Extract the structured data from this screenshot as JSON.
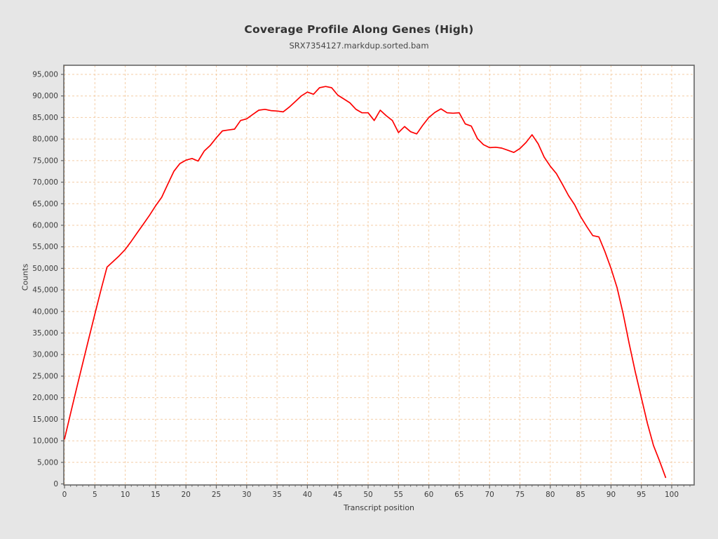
{
  "chart_data": {
    "type": "line",
    "title": "Coverage Profile Along Genes (High)",
    "subtitle": "SRX7354127.markdup.sorted.bam",
    "xlabel": "Transcript position",
    "ylabel": "Counts",
    "xlim": [
      0,
      100
    ],
    "ylim": [
      0,
      97000
    ],
    "x_ticks": [
      0,
      5,
      10,
      15,
      20,
      25,
      30,
      35,
      40,
      45,
      50,
      55,
      60,
      65,
      70,
      75,
      80,
      85,
      90,
      95,
      100
    ],
    "y_ticks": [
      0,
      5000,
      10000,
      15000,
      20000,
      25000,
      30000,
      35000,
      40000,
      45000,
      50000,
      55000,
      60000,
      65000,
      70000,
      75000,
      80000,
      85000,
      90000,
      95000
    ],
    "grid": {
      "style": "dashed",
      "color": "#f4cda6"
    },
    "legend": "none",
    "plot_background": "#ffffff",
    "page_background": "#e6e6e6",
    "frame_color": "#666666",
    "series": [
      {
        "name": "coverage",
        "color": "#fe0000",
        "x": [
          0,
          1,
          2,
          3,
          4,
          5,
          6,
          7,
          8,
          9,
          10,
          11,
          12,
          13,
          14,
          15,
          16,
          17,
          18,
          19,
          20,
          21,
          22,
          23,
          24,
          25,
          26,
          27,
          28,
          29,
          30,
          31,
          32,
          33,
          34,
          35,
          36,
          37,
          38,
          39,
          40,
          41,
          42,
          43,
          44,
          45,
          46,
          47,
          48,
          49,
          50,
          51,
          52,
          53,
          54,
          55,
          56,
          57,
          58,
          59,
          60,
          61,
          62,
          63,
          64,
          65,
          66,
          67,
          68,
          69,
          70,
          71,
          72,
          73,
          74,
          75,
          76,
          77,
          78,
          79,
          80,
          81,
          82,
          83,
          84,
          85,
          86,
          87,
          88,
          89,
          90,
          91,
          92,
          93,
          94,
          95,
          96,
          97,
          98,
          99
        ],
        "y": [
          10400,
          16400,
          22200,
          28000,
          33700,
          39400,
          45000,
          50300,
          51600,
          52900,
          54400,
          56300,
          58300,
          60300,
          62300,
          64500,
          66500,
          69500,
          72500,
          74300,
          75100,
          75500,
          74900,
          77200,
          78500,
          80300,
          81900,
          82100,
          82300,
          84300,
          84700,
          85700,
          86700,
          86900,
          86600,
          86500,
          86300,
          87400,
          88700,
          90000,
          90900,
          90400,
          91900,
          92200,
          91900,
          90200,
          89300,
          88400,
          86900,
          86100,
          86100,
          84300,
          86700,
          85400,
          84300,
          81500,
          82900,
          81700,
          81200,
          83200,
          85000,
          86200,
          87000,
          86100,
          86000,
          86100,
          83500,
          83000,
          80100,
          78700,
          78000,
          78100,
          77900,
          77400,
          76900,
          77800,
          79200,
          81000,
          78900,
          75800,
          73700,
          72000,
          69500,
          66900,
          64800,
          62000,
          59700,
          57600,
          57300,
          53900,
          50000,
          45500,
          39500,
          32500,
          26000,
          20000,
          14000,
          8900,
          5300,
          1500
        ]
      }
    ]
  }
}
